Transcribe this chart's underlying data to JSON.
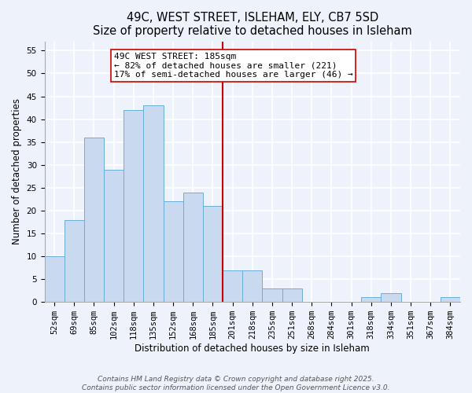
{
  "title": "49C, WEST STREET, ISLEHAM, ELY, CB7 5SD",
  "subtitle": "Size of property relative to detached houses in Isleham",
  "xlabel": "Distribution of detached houses by size in Isleham",
  "ylabel": "Number of detached properties",
  "categories": [
    "52sqm",
    "69sqm",
    "85sqm",
    "102sqm",
    "118sqm",
    "135sqm",
    "152sqm",
    "168sqm",
    "185sqm",
    "201sqm",
    "218sqm",
    "235sqm",
    "251sqm",
    "268sqm",
    "284sqm",
    "301sqm",
    "318sqm",
    "334sqm",
    "351sqm",
    "367sqm",
    "384sqm"
  ],
  "values": [
    10,
    18,
    36,
    29,
    42,
    43,
    22,
    24,
    21,
    7,
    7,
    3,
    3,
    0,
    0,
    0,
    1,
    2,
    0,
    0,
    1
  ],
  "bar_color": "#c8d9f0",
  "bar_edge_color": "#6baed6",
  "vline_x_index": 8,
  "vline_color": "#cc0000",
  "annotation_line1": "49C WEST STREET: 185sqm",
  "annotation_line2": "← 82% of detached houses are smaller (221)",
  "annotation_line3": "17% of semi-detached houses are larger (46) →",
  "annotation_box_color": "#ffffff",
  "annotation_box_edge_color": "#cc0000",
  "ylim": [
    0,
    57
  ],
  "yticks": [
    0,
    5,
    10,
    15,
    20,
    25,
    30,
    35,
    40,
    45,
    50,
    55
  ],
  "background_color": "#eef2fb",
  "grid_color": "#ffffff",
  "footer_line1": "Contains HM Land Registry data © Crown copyright and database right 2025.",
  "footer_line2": "Contains public sector information licensed under the Open Government Licence v3.0.",
  "title_fontsize": 10.5,
  "subtitle_fontsize": 9.5,
  "axis_label_fontsize": 8.5,
  "tick_fontsize": 7.5,
  "annotation_fontsize": 8,
  "footer_fontsize": 6.5
}
